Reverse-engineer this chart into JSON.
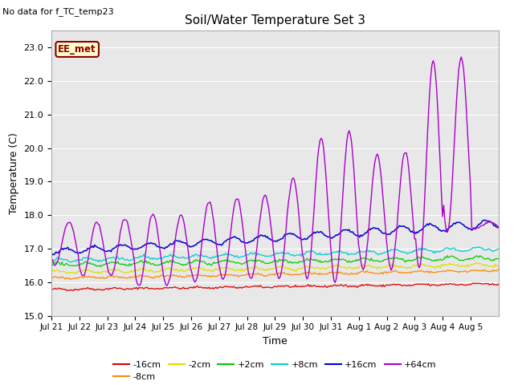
{
  "title": "Soil/Water Temperature Set 3",
  "xlabel": "Time",
  "ylabel": "Temperature (C)",
  "ylim": [
    15.0,
    23.5
  ],
  "yticks": [
    15.0,
    16.0,
    17.0,
    18.0,
    19.0,
    20.0,
    21.0,
    22.0,
    23.0
  ],
  "no_data_text": "No data for f_TC_temp23",
  "ee_met_label": "EE_met",
  "xtick_labels": [
    "Jul 21",
    "Jul 22",
    "Jul 23",
    "Jul 24",
    "Jul 25",
    "Jul 26",
    "Jul 27",
    "Jul 28",
    "Jul 29",
    "Jul 30",
    "Jul 31",
    "Aug 1",
    "Aug 2",
    "Aug 3",
    "Aug 4",
    "Aug 5"
  ],
  "series_colors": {
    "-16cm": "#dd0000",
    "-8cm": "#ff8800",
    "-2cm": "#dddd00",
    "+2cm": "#00cc00",
    "+8cm": "#00cccc",
    "+16cm": "#0000cc",
    "+64cm": "#aa00cc"
  },
  "legend_entries": [
    "-16cm",
    "-8cm",
    "-2cm",
    "+2cm",
    "+8cm",
    "+16cm",
    "+64cm"
  ],
  "plot_bg_color": "#e8e8e8",
  "fig_bg_color": "#ffffff",
  "grid_color": "#ffffff",
  "peak_temps": [
    17.8,
    17.8,
    17.9,
    18.05,
    18.0,
    18.4,
    18.5,
    18.6,
    19.1,
    20.3,
    20.5,
    19.8,
    19.9,
    22.6,
    22.7,
    17.8
  ],
  "trough_temps": [
    16.5,
    16.2,
    16.2,
    15.9,
    15.9,
    16.0,
    16.1,
    16.1,
    16.1,
    16.1,
    16.0,
    16.4,
    16.4,
    16.4,
    17.5,
    17.6
  ]
}
